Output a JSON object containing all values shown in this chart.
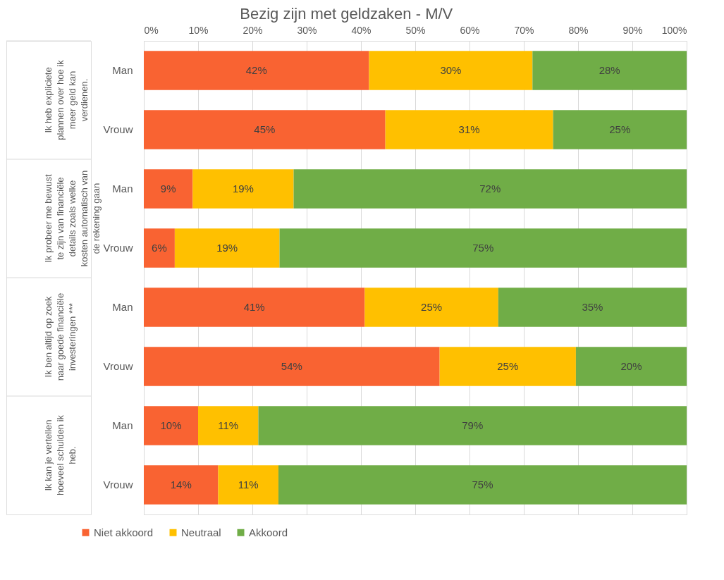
{
  "chart_data": {
    "type": "bar",
    "orientation": "horizontal",
    "stacked": true,
    "title": "Bezig zijn met geldzaken - M/V",
    "categories": [
      "Man",
      "Vrouw",
      "Man",
      "Vrouw",
      "Man",
      "Vrouw",
      "Man",
      "Vrouw"
    ],
    "series": [
      {
        "name": "Niet akkoord",
        "color": "#f96332",
        "values": [
          41.5,
          44.5,
          9.0,
          5.7,
          40.7,
          54.5,
          10.0,
          13.7
        ],
        "value_labels": [
          "42%",
          "45%",
          "9%",
          "6%",
          "41%",
          "54%",
          "10%",
          "14%"
        ]
      },
      {
        "name": "Neutraal",
        "color": "#ffc000",
        "values": [
          30.1,
          30.9,
          18.6,
          19.3,
          24.6,
          25.1,
          11.1,
          11.1
        ],
        "value_labels": [
          "30%",
          "31%",
          "19%",
          "19%",
          "25%",
          "25%",
          "11%",
          "11%"
        ]
      },
      {
        "name": "Akkoord",
        "color": "#70ad47",
        "values": [
          28.4,
          24.6,
          72.4,
          75.0,
          34.7,
          20.4,
          78.9,
          75.2
        ],
        "value_labels": [
          "28%",
          "25%",
          "72%",
          "75%",
          "35%",
          "20%",
          "79%",
          "75%"
        ]
      }
    ],
    "annotations": [
      "Ik heb expliciete plannen over hoe ik meer geld kan verdienen.",
      "Ik probeer me bewust te zijn van financiële details zoals welke kosten automatisch van de rekening gaan",
      "Ik ben altijd op zoek naar goede financiële investeringen ***",
      "Ik kan je vertellen hoeveel schulden ik heb."
    ],
    "xlim": [
      0,
      100
    ],
    "xticks": [
      {
        "value": 0,
        "label": "0%"
      },
      {
        "value": 10,
        "label": "10%"
      },
      {
        "value": 20,
        "label": "20%"
      },
      {
        "value": 30,
        "label": "30%"
      },
      {
        "value": 40,
        "label": "40%"
      },
      {
        "value": 50,
        "label": "50%"
      },
      {
        "value": 60,
        "label": "60%"
      },
      {
        "value": 70,
        "label": "70%"
      },
      {
        "value": 80,
        "label": "80%"
      },
      {
        "value": 90,
        "label": "90%"
      },
      {
        "value": 100,
        "label": "100%"
      }
    ],
    "grid": "x",
    "legend": "bottom"
  }
}
